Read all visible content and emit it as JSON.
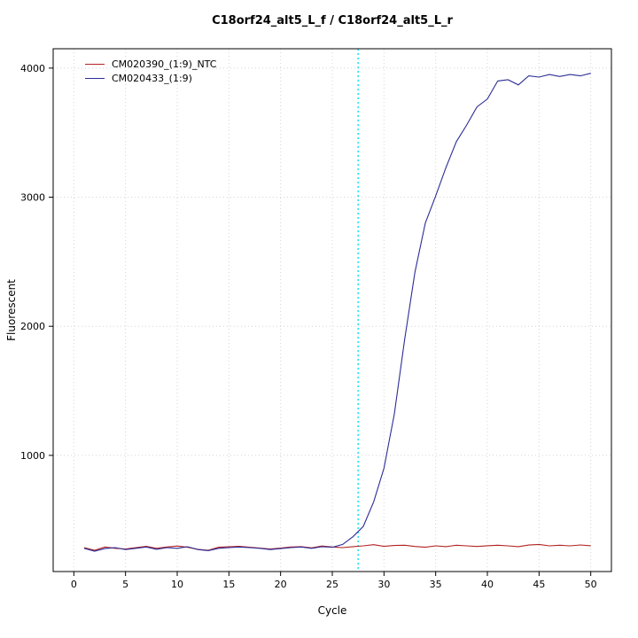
{
  "chart_data": {
    "type": "line",
    "title": "C18orf24_alt5_L_f / C18orf24_alt5_L_r",
    "xlabel": "Cycle",
    "ylabel": "Fluorescent",
    "xlim": [
      -2,
      52
    ],
    "ylim": [
      100,
      4150
    ],
    "x_ticks": [
      0,
      5,
      10,
      15,
      20,
      25,
      30,
      35,
      40,
      45,
      50
    ],
    "y_ticks": [
      1000,
      2000,
      3000,
      4000
    ],
    "grid": "dotted",
    "legend_position": "top-left",
    "threshold_cycle": 27.5,
    "threshold_color": "#00e5ee",
    "x": [
      1,
      2,
      3,
      4,
      5,
      6,
      7,
      8,
      9,
      10,
      11,
      12,
      13,
      14,
      15,
      16,
      17,
      18,
      19,
      20,
      21,
      22,
      23,
      24,
      25,
      26,
      27,
      28,
      29,
      30,
      31,
      32,
      33,
      34,
      35,
      36,
      37,
      38,
      39,
      40,
      41,
      42,
      43,
      44,
      45,
      46,
      47,
      48,
      49,
      50
    ],
    "series": [
      {
        "name": "CM020390_(1:9)_NTC",
        "color": "#b22222",
        "values": [
          285,
          265,
          290,
          280,
          275,
          285,
          295,
          280,
          290,
          298,
          288,
          272,
          265,
          288,
          292,
          295,
          288,
          282,
          275,
          282,
          290,
          293,
          283,
          298,
          290,
          285,
          293,
          299,
          308,
          295,
          302,
          304,
          294,
          288,
          299,
          293,
          304,
          299,
          294,
          300,
          304,
          299,
          293,
          305,
          310,
          299,
          304,
          299,
          306,
          300
        ]
      },
      {
        "name": "CM020433_(1:9)",
        "color": "#2c2c96",
        "values": [
          280,
          258,
          278,
          285,
          270,
          280,
          290,
          272,
          285,
          280,
          292,
          270,
          262,
          280,
          285,
          290,
          285,
          280,
          270,
          278,
          285,
          290,
          280,
          292,
          288,
          310,
          370,
          450,
          640,
          900,
          1320,
          1900,
          2420,
          2800,
          3010,
          3230,
          3430,
          3560,
          3700,
          3760,
          3900,
          3910,
          3870,
          3940,
          3930,
          3950,
          3935,
          3950,
          3940,
          3960
        ]
      }
    ]
  }
}
